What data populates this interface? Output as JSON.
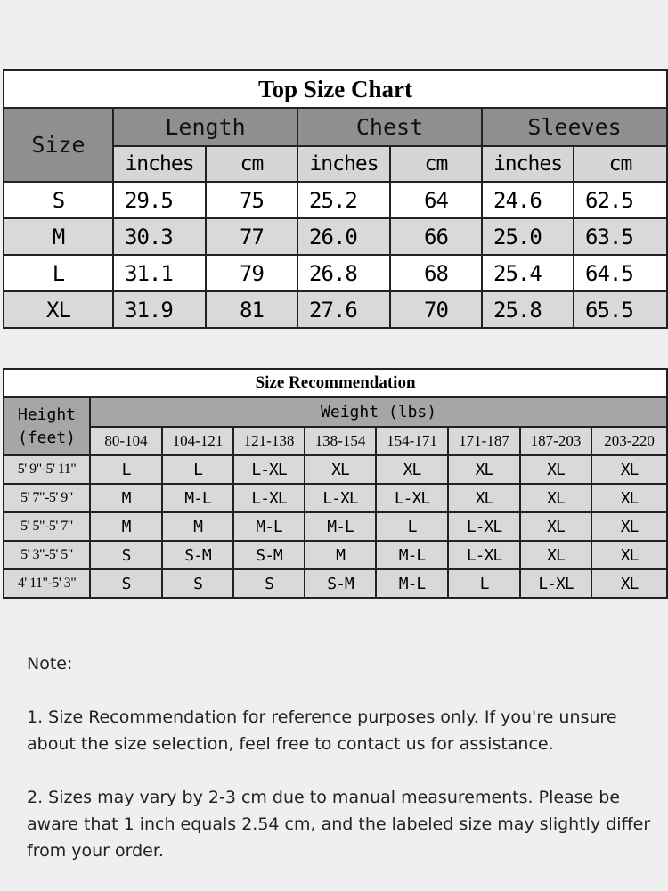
{
  "top_size_chart": {
    "title": "Top Size Chart",
    "size_header": "Size",
    "groups": [
      "Length",
      "Chest",
      "Sleeves"
    ],
    "units": [
      "inches",
      "cm",
      "inches",
      "cm",
      "inches",
      "cm"
    ],
    "rows": [
      {
        "size": "S",
        "values": [
          "29.5",
          "75",
          "25.2",
          "64",
          "24.6",
          "62.5"
        ]
      },
      {
        "size": "M",
        "values": [
          "30.3",
          "77",
          "26.0",
          "66",
          "25.0",
          "63.5"
        ]
      },
      {
        "size": "L",
        "values": [
          "31.1",
          "79",
          "26.8",
          "68",
          "25.4",
          "64.5"
        ]
      },
      {
        "size": "XL",
        "values": [
          "31.9",
          "81",
          "27.6",
          "70",
          "25.8",
          "65.5"
        ]
      }
    ]
  },
  "size_recommendation": {
    "title": "Size Recommendation",
    "height_header_line1": "Height",
    "height_header_line2": "(feet)",
    "weight_header": "Weight (lbs)",
    "weight_ranges": [
      "80-104",
      "104-121",
      "121-138",
      "138-154",
      "154-171",
      "171-187",
      "187-203",
      "203-220"
    ],
    "rows": [
      {
        "height": "5' 9\"-5' 11\"",
        "values": [
          "L",
          "L",
          "L-XL",
          "XL",
          "XL",
          "XL",
          "XL",
          "XL"
        ]
      },
      {
        "height": "5' 7\"-5' 9\"",
        "values": [
          "M",
          "M-L",
          "L-XL",
          "L-XL",
          "L-XL",
          "XL",
          "XL",
          "XL"
        ]
      },
      {
        "height": "5' 5\"-5' 7\"",
        "values": [
          "M",
          "M",
          "M-L",
          "M-L",
          "L",
          "L-XL",
          "XL",
          "XL"
        ]
      },
      {
        "height": "5' 3\"-5' 5\"",
        "values": [
          "S",
          "S-M",
          "S-M",
          "M",
          "M-L",
          "L-XL",
          "XL",
          "XL"
        ]
      },
      {
        "height": "4' 11\"-5' 3\"",
        "values": [
          "S",
          "S",
          "S",
          "S-M",
          "M-L",
          "L",
          "L-XL",
          "XL"
        ]
      }
    ]
  },
  "notes": {
    "heading": "Note:",
    "items": [
      "1. Size Recommendation for reference purposes only. If you're unsure about the size selection, feel free to contact us for assistance.",
      "2. Sizes may vary by 2-3 cm due to manual measurements. Please be aware that 1 inch equals 2.54 cm, and the labeled size may slightly differ from your order."
    ]
  }
}
